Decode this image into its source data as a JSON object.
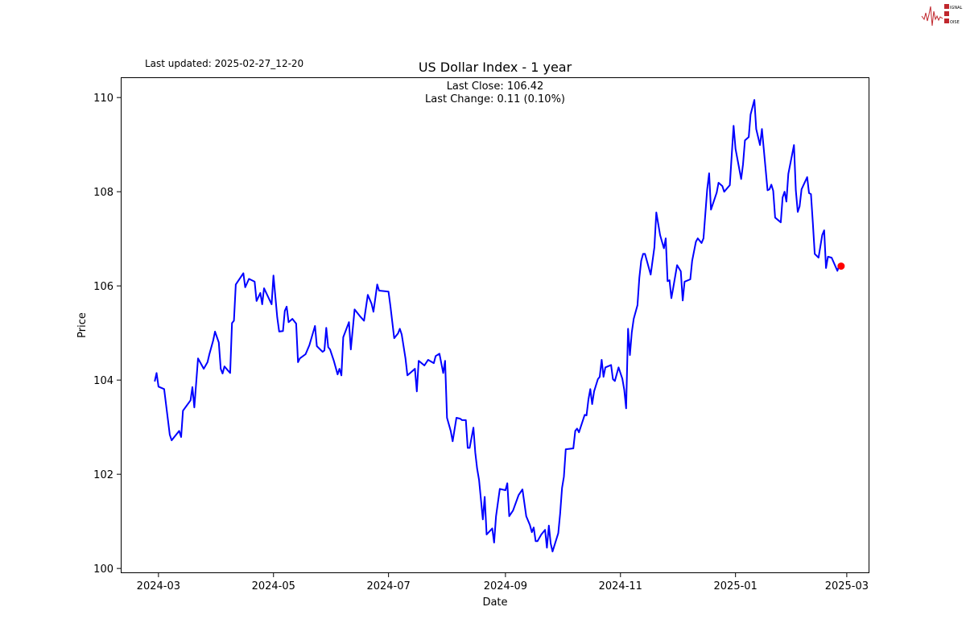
{
  "logo": {
    "text": "SIGNAL 2 NOISE",
    "accent": "#c0272d"
  },
  "last_updated": "Last updated: 2025-02-27_12-20",
  "chart_data": {
    "type": "line",
    "title": "US Dollar Index - 1 year",
    "annotations": [
      "Last Close: 106.42",
      "Last Change: 0.11 (0.10%)"
    ],
    "xlabel": "Date",
    "ylabel": "Price",
    "xlim": [
      "2024-02-10",
      "2025-03-13"
    ],
    "ylim": [
      99.9,
      110.43
    ],
    "x_ticks": [
      "2024-03",
      "2024-05",
      "2024-07",
      "2024-09",
      "2024-11",
      "2025-01",
      "2025-03"
    ],
    "y_ticks": [
      100,
      102,
      104,
      106,
      108,
      110
    ],
    "grid": false,
    "line_color": "#0000ff",
    "marker_color": "#ff0000",
    "last_point": {
      "date": "2025-02-26",
      "value": 106.42
    },
    "series": [
      {
        "points": [
          [
            "2024-02-28",
            103.97
          ],
          [
            "2024-02-29",
            104.15
          ],
          [
            "2024-03-01",
            103.86
          ],
          [
            "2024-03-04",
            103.81
          ],
          [
            "2024-03-07",
            102.84
          ],
          [
            "2024-03-08",
            102.72
          ],
          [
            "2024-03-12",
            102.92
          ],
          [
            "2024-03-13",
            102.79
          ],
          [
            "2024-03-14",
            103.35
          ],
          [
            "2024-03-18",
            103.57
          ],
          [
            "2024-03-19",
            103.85
          ],
          [
            "2024-03-20",
            103.42
          ],
          [
            "2024-03-22",
            104.46
          ],
          [
            "2024-03-25",
            104.24
          ],
          [
            "2024-03-27",
            104.38
          ],
          [
            "2024-03-28",
            104.55
          ],
          [
            "2024-03-30",
            104.84
          ],
          [
            "2024-03-31",
            105.03
          ],
          [
            "2024-04-02",
            104.8
          ],
          [
            "2024-04-03",
            104.24
          ],
          [
            "2024-04-04",
            104.14
          ],
          [
            "2024-04-05",
            104.29
          ],
          [
            "2024-04-08",
            104.15
          ],
          [
            "2024-04-09",
            105.21
          ],
          [
            "2024-04-10",
            105.26
          ],
          [
            "2024-04-11",
            106.03
          ],
          [
            "2024-04-15",
            106.27
          ],
          [
            "2024-04-16",
            105.97
          ],
          [
            "2024-04-18",
            106.15
          ],
          [
            "2024-04-21",
            106.09
          ],
          [
            "2024-04-22",
            105.68
          ],
          [
            "2024-04-24",
            105.85
          ],
          [
            "2024-04-25",
            105.61
          ],
          [
            "2024-04-26",
            105.95
          ],
          [
            "2024-04-30",
            105.61
          ],
          [
            "2024-05-01",
            106.22
          ],
          [
            "2024-05-03",
            105.33
          ],
          [
            "2024-05-04",
            105.03
          ],
          [
            "2024-05-06",
            105.04
          ],
          [
            "2024-05-07",
            105.47
          ],
          [
            "2024-05-08",
            105.56
          ],
          [
            "2024-05-09",
            105.23
          ],
          [
            "2024-05-11",
            105.3
          ],
          [
            "2024-05-13",
            105.2
          ],
          [
            "2024-05-14",
            104.38
          ],
          [
            "2024-05-15",
            104.46
          ],
          [
            "2024-05-18",
            104.55
          ],
          [
            "2024-05-20",
            104.74
          ],
          [
            "2024-05-23",
            105.15
          ],
          [
            "2024-05-24",
            104.72
          ],
          [
            "2024-05-27",
            104.6
          ],
          [
            "2024-05-28",
            104.63
          ],
          [
            "2024-05-29",
            105.11
          ],
          [
            "2024-05-30",
            104.7
          ],
          [
            "2024-05-31",
            104.65
          ],
          [
            "2024-06-02",
            104.41
          ],
          [
            "2024-06-04",
            104.12
          ],
          [
            "2024-06-05",
            104.24
          ],
          [
            "2024-06-06",
            104.1
          ],
          [
            "2024-06-07",
            104.91
          ],
          [
            "2024-06-10",
            105.23
          ],
          [
            "2024-06-11",
            104.65
          ],
          [
            "2024-06-13",
            105.5
          ],
          [
            "2024-06-16",
            105.35
          ],
          [
            "2024-06-18",
            105.26
          ],
          [
            "2024-06-20",
            105.81
          ],
          [
            "2024-06-22",
            105.62
          ],
          [
            "2024-06-23",
            105.45
          ],
          [
            "2024-06-25",
            106.03
          ],
          [
            "2024-06-26",
            105.9
          ],
          [
            "2024-07-01",
            105.88
          ],
          [
            "2024-07-02",
            105.57
          ],
          [
            "2024-07-04",
            104.89
          ],
          [
            "2024-07-06",
            104.99
          ],
          [
            "2024-07-07",
            105.09
          ],
          [
            "2024-07-08",
            104.97
          ],
          [
            "2024-07-10",
            104.46
          ],
          [
            "2024-07-11",
            104.1
          ],
          [
            "2024-07-13",
            104.17
          ],
          [
            "2024-07-15",
            104.24
          ],
          [
            "2024-07-16",
            103.76
          ],
          [
            "2024-07-17",
            104.41
          ],
          [
            "2024-07-20",
            104.31
          ],
          [
            "2024-07-22",
            104.43
          ],
          [
            "2024-07-25",
            104.36
          ],
          [
            "2024-07-26",
            104.51
          ],
          [
            "2024-07-28",
            104.56
          ],
          [
            "2024-07-30",
            104.15
          ],
          [
            "2024-07-31",
            104.41
          ],
          [
            "2024-08-01",
            103.2
          ],
          [
            "2024-08-03",
            102.92
          ],
          [
            "2024-08-04",
            102.7
          ],
          [
            "2024-08-06",
            103.2
          ],
          [
            "2024-08-08",
            103.18
          ],
          [
            "2024-08-09",
            103.15
          ],
          [
            "2024-08-11",
            103.15
          ],
          [
            "2024-08-12",
            102.56
          ],
          [
            "2024-08-13",
            102.56
          ],
          [
            "2024-08-15",
            102.99
          ],
          [
            "2024-08-16",
            102.46
          ],
          [
            "2024-08-17",
            102.12
          ],
          [
            "2024-08-18",
            101.88
          ],
          [
            "2024-08-20",
            101.04
          ],
          [
            "2024-08-21",
            101.52
          ],
          [
            "2024-08-22",
            100.72
          ],
          [
            "2024-08-25",
            100.85
          ],
          [
            "2024-08-26",
            100.55
          ],
          [
            "2024-08-27",
            101.11
          ],
          [
            "2024-08-29",
            101.69
          ],
          [
            "2024-09-01",
            101.66
          ],
          [
            "2024-09-02",
            101.81
          ],
          [
            "2024-09-03",
            101.11
          ],
          [
            "2024-09-05",
            101.23
          ],
          [
            "2024-09-08",
            101.56
          ],
          [
            "2024-09-10",
            101.68
          ],
          [
            "2024-09-12",
            101.11
          ],
          [
            "2024-09-14",
            100.92
          ],
          [
            "2024-09-15",
            100.77
          ],
          [
            "2024-09-16",
            100.87
          ],
          [
            "2024-09-17",
            100.58
          ],
          [
            "2024-09-18",
            100.58
          ],
          [
            "2024-09-20",
            100.72
          ],
          [
            "2024-09-22",
            100.82
          ],
          [
            "2024-09-23",
            100.44
          ],
          [
            "2024-09-24",
            100.91
          ],
          [
            "2024-09-25",
            100.53
          ],
          [
            "2024-09-26",
            100.36
          ],
          [
            "2024-09-29",
            100.75
          ],
          [
            "2024-09-30",
            101.16
          ],
          [
            "2024-10-01",
            101.71
          ],
          [
            "2024-10-02",
            101.95
          ],
          [
            "2024-10-03",
            102.53
          ],
          [
            "2024-10-07",
            102.55
          ],
          [
            "2024-10-08",
            102.92
          ],
          [
            "2024-10-09",
            102.97
          ],
          [
            "2024-10-10",
            102.89
          ],
          [
            "2024-10-13",
            103.26
          ],
          [
            "2024-10-14",
            103.25
          ],
          [
            "2024-10-15",
            103.59
          ],
          [
            "2024-10-16",
            103.81
          ],
          [
            "2024-10-17",
            103.49
          ],
          [
            "2024-10-18",
            103.76
          ],
          [
            "2024-10-20",
            104.02
          ],
          [
            "2024-10-21",
            104.07
          ],
          [
            "2024-10-22",
            104.43
          ],
          [
            "2024-10-23",
            104.07
          ],
          [
            "2024-10-24",
            104.27
          ],
          [
            "2024-10-27",
            104.32
          ],
          [
            "2024-10-28",
            104.02
          ],
          [
            "2024-10-29",
            103.98
          ],
          [
            "2024-10-31",
            104.27
          ],
          [
            "2024-11-02",
            104.03
          ],
          [
            "2024-11-03",
            103.79
          ],
          [
            "2024-11-04",
            103.4
          ],
          [
            "2024-11-05",
            105.09
          ],
          [
            "2024-11-06",
            104.53
          ],
          [
            "2024-11-07",
            105.01
          ],
          [
            "2024-11-08",
            105.3
          ],
          [
            "2024-11-10",
            105.59
          ],
          [
            "2024-11-11",
            106.17
          ],
          [
            "2024-11-12",
            106.53
          ],
          [
            "2024-11-13",
            106.68
          ],
          [
            "2024-11-14",
            106.68
          ],
          [
            "2024-11-17",
            106.24
          ],
          [
            "2024-11-19",
            106.82
          ],
          [
            "2024-11-20",
            107.56
          ],
          [
            "2024-11-22",
            107.08
          ],
          [
            "2024-11-24",
            106.8
          ],
          [
            "2024-11-25",
            107.01
          ],
          [
            "2024-11-26",
            106.1
          ],
          [
            "2024-11-27",
            106.12
          ],
          [
            "2024-11-28",
            105.74
          ],
          [
            "2024-11-29",
            105.97
          ],
          [
            "2024-12-01",
            106.44
          ],
          [
            "2024-12-03",
            106.31
          ],
          [
            "2024-12-04",
            105.69
          ],
          [
            "2024-12-05",
            106.09
          ],
          [
            "2024-12-08",
            106.14
          ],
          [
            "2024-12-09",
            106.53
          ],
          [
            "2024-12-11",
            106.94
          ],
          [
            "2024-12-12",
            107.01
          ],
          [
            "2024-12-14",
            106.91
          ],
          [
            "2024-12-15",
            107.01
          ],
          [
            "2024-12-17",
            108.05
          ],
          [
            "2024-12-18",
            108.39
          ],
          [
            "2024-12-19",
            107.62
          ],
          [
            "2024-12-22",
            107.98
          ],
          [
            "2024-12-23",
            108.19
          ],
          [
            "2024-12-25",
            108.12
          ],
          [
            "2024-12-26",
            108.0
          ],
          [
            "2024-12-29",
            108.14
          ],
          [
            "2024-12-31",
            109.4
          ],
          [
            "2025-01-01",
            108.91
          ],
          [
            "2025-01-04",
            108.27
          ],
          [
            "2025-01-05",
            108.58
          ],
          [
            "2025-01-06",
            109.09
          ],
          [
            "2025-01-08",
            109.16
          ],
          [
            "2025-01-09",
            109.64
          ],
          [
            "2025-01-11",
            109.95
          ],
          [
            "2025-01-12",
            109.33
          ],
          [
            "2025-01-14",
            108.99
          ],
          [
            "2025-01-15",
            109.33
          ],
          [
            "2025-01-18",
            108.03
          ],
          [
            "2025-01-19",
            108.05
          ],
          [
            "2025-01-20",
            108.15
          ],
          [
            "2025-01-21",
            108.02
          ],
          [
            "2025-01-22",
            107.45
          ],
          [
            "2025-01-25",
            107.35
          ],
          [
            "2025-01-26",
            107.88
          ],
          [
            "2025-01-27",
            108.0
          ],
          [
            "2025-01-28",
            107.79
          ],
          [
            "2025-01-29",
            108.38
          ],
          [
            "2025-02-01",
            108.99
          ],
          [
            "2025-02-02",
            108.03
          ],
          [
            "2025-02-03",
            107.57
          ],
          [
            "2025-02-04",
            107.69
          ],
          [
            "2025-02-05",
            108.05
          ],
          [
            "2025-02-08",
            108.31
          ],
          [
            "2025-02-09",
            107.97
          ],
          [
            "2025-02-10",
            107.95
          ],
          [
            "2025-02-11",
            107.35
          ],
          [
            "2025-02-12",
            106.68
          ],
          [
            "2025-02-14",
            106.6
          ],
          [
            "2025-02-16",
            107.08
          ],
          [
            "2025-02-17",
            107.18
          ],
          [
            "2025-02-18",
            106.38
          ],
          [
            "2025-02-19",
            106.62
          ],
          [
            "2025-02-21",
            106.6
          ],
          [
            "2025-02-24",
            106.32
          ],
          [
            "2025-02-25",
            106.43
          ],
          [
            "2025-02-26",
            106.42
          ]
        ]
      }
    ]
  }
}
